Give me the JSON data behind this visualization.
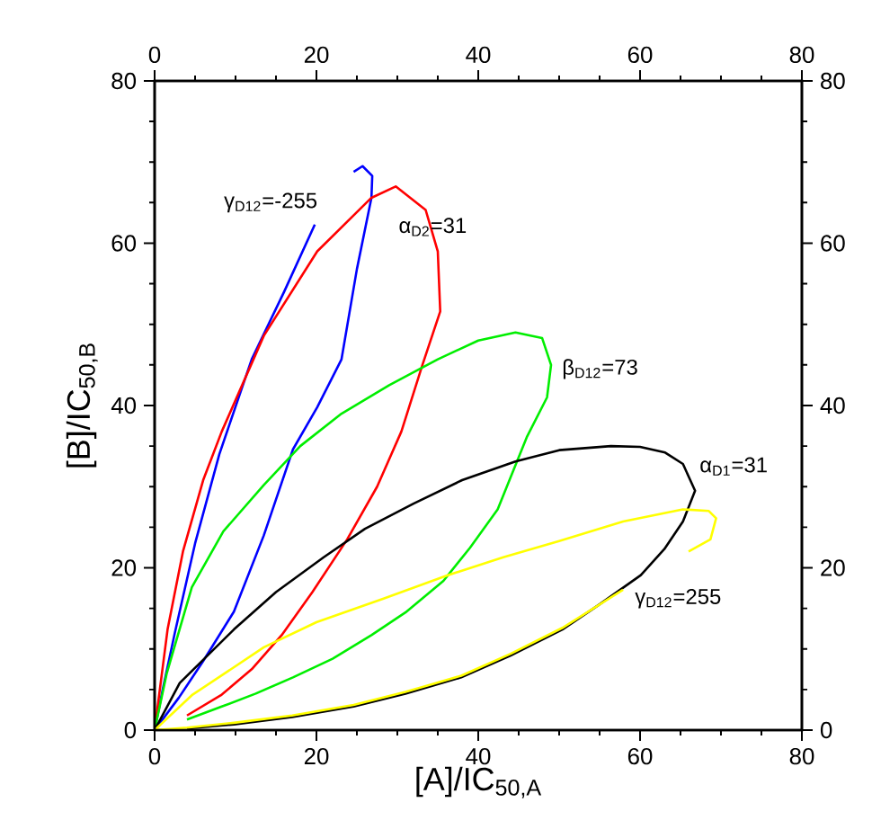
{
  "chart_data": {
    "type": "line",
    "xlabel": "[A]/IC$_{50,A}$",
    "ylabel": "[B]/IC$_{50,B}$",
    "xlim": [
      0,
      80
    ],
    "ylim": [
      0,
      80
    ],
    "x2lim": [
      0,
      80
    ],
    "y2lim": [
      0,
      80
    ],
    "xticks": [
      0,
      {
        "value": 5,
        "label": null
      },
      {
        "value": 10,
        "label": null
      },
      {
        "value": 15,
        "label": null
      },
      20,
      {
        "value": 25,
        "label": null
      },
      {
        "value": 30,
        "label": null
      },
      {
        "value": 35,
        "label": null
      },
      40,
      {
        "value": 45,
        "label": null
      },
      {
        "value": 50,
        "label": null
      },
      {
        "value": 55,
        "label": null
      },
      60,
      {
        "value": 65,
        "label": null
      },
      {
        "value": 70,
        "label": null
      },
      {
        "value": 75,
        "label": null
      },
      80
    ],
    "yticks": [
      0,
      {
        "value": 5,
        "label": null
      },
      {
        "value": 10,
        "label": null
      },
      {
        "value": 15,
        "label": null
      },
      20,
      {
        "value": 25,
        "label": null
      },
      {
        "value": 30,
        "label": null
      },
      {
        "value": 35,
        "label": null
      },
      40,
      {
        "value": 45,
        "label": null
      },
      {
        "value": 50,
        "label": null
      },
      {
        "value": 55,
        "label": null
      },
      60,
      {
        "value": 65,
        "label": null
      },
      {
        "value": 70,
        "label": null
      },
      {
        "value": 75,
        "label": null
      },
      80
    ],
    "x2ticks": [
      0,
      {
        "value": 5,
        "label": null
      },
      {
        "value": 10,
        "label": null
      },
      {
        "value": 15,
        "label": null
      },
      20,
      {
        "value": 25,
        "label": null
      },
      {
        "value": 30,
        "label": null
      },
      {
        "value": 35,
        "label": null
      },
      40,
      {
        "value": 45,
        "label": null
      },
      {
        "value": 50,
        "label": null
      },
      {
        "value": 55,
        "label": null
      },
      60,
      {
        "value": 65,
        "label": null
      },
      {
        "value": 70,
        "label": null
      },
      {
        "value": 75,
        "label": null
      },
      80
    ],
    "y2ticks": [
      0,
      {
        "value": 5,
        "label": null
      },
      {
        "value": 10,
        "label": null
      },
      {
        "value": 15,
        "label": null
      },
      20,
      {
        "value": 25,
        "label": null
      },
      {
        "value": 30,
        "label": null
      },
      {
        "value": 35,
        "label": null
      },
      40,
      {
        "value": 45,
        "label": null
      },
      {
        "value": 50,
        "label": null
      },
      {
        "value": 55,
        "label": null
      },
      60,
      {
        "value": 65,
        "label": null
      },
      {
        "value": 70,
        "label": null
      },
      {
        "value": 75,
        "label": null
      },
      80
    ],
    "series": [
      {
        "name": "γ$_{D12}$=-255",
        "color": "#0000ff",
        "x": [
          19.8,
          16,
          12,
          8,
          5,
          2.5,
          1,
          0,
          3,
          6,
          9.8,
          13.5,
          17.1,
          20.1,
          23.1,
          25,
          26.8,
          26.9,
          25.7,
          24.6
        ],
        "values": [
          62.3,
          54,
          45.7,
          34,
          23,
          12,
          5,
          0,
          4,
          8.5,
          14.6,
          24,
          34.6,
          39.8,
          45.7,
          56.8,
          65.6,
          68.3,
          69.5,
          68.8
        ]
      },
      {
        "name": "α$_{D2}$=31",
        "color": "#ff0000",
        "x": [
          0,
          1.6,
          3.5,
          6,
          8.3,
          13.5,
          20.1,
          26.8,
          29.8,
          33.5,
          35,
          35.3,
          33.1,
          30.5,
          27.5,
          23.8,
          19.5,
          15.7,
          12,
          8.2,
          4
        ],
        "values": [
          0,
          12.4,
          22,
          30.8,
          36.8,
          48.6,
          59,
          65.6,
          67,
          64.1,
          59,
          51.6,
          45,
          36.8,
          30,
          23.5,
          17,
          11.7,
          7.5,
          4.3,
          1.8
        ]
      },
      {
        "name": "β$_{D12}$=73",
        "color": "#00ee00",
        "x": [
          0,
          1.5,
          4.6,
          8.5,
          13.5,
          18,
          23.1,
          29,
          35,
          40,
          44.6,
          47.9,
          49,
          48.5,
          46,
          42.4,
          39,
          35.7,
          31,
          26.8,
          22,
          17.1,
          12.5,
          8.3,
          4
        ],
        "values": [
          0,
          7,
          17.6,
          24.5,
          30.2,
          35,
          39,
          42.5,
          45.7,
          48,
          49,
          48.3,
          45,
          41,
          36.1,
          27.2,
          22.5,
          18.4,
          14.5,
          11.7,
          8.8,
          6.5,
          4.5,
          2.9,
          1.3
        ]
      },
      {
        "name": "α$_{D1}$=31",
        "color": "#000000",
        "x": [
          0,
          3.1,
          9.8,
          15,
          20.9,
          26,
          32,
          38,
          44.6,
          50,
          56.4,
          60,
          63.1,
          65.3,
          66.8,
          65.3,
          63,
          60.1,
          55,
          50.4,
          44,
          37.9,
          31,
          24.6,
          17,
          9.8,
          4
        ],
        "values": [
          0,
          5.8,
          12.4,
          17,
          21.3,
          24.8,
          27.9,
          30.8,
          33.1,
          34.5,
          35,
          34.9,
          34.2,
          32.8,
          29.5,
          25.7,
          22.3,
          19.1,
          15.5,
          12.4,
          9.2,
          6.5,
          4.5,
          2.9,
          1.6,
          0.7,
          0.2
        ]
      },
      {
        "name": "γ$_{D12}$=255",
        "color": "#ffff00",
        "x": [
          57.9,
          50.4,
          44,
          37.9,
          31,
          24.6,
          17,
          9.8,
          4,
          0,
          4.6,
          13.5,
          20,
          28.3,
          36,
          43.1,
          50,
          57.9,
          65.3,
          68.5,
          69.4,
          68.7,
          66
        ],
        "values": [
          17.3,
          12.6,
          9.4,
          6.7,
          4.7,
          3.1,
          1.8,
          0.9,
          0.3,
          0,
          4.3,
          10.2,
          13.3,
          16.2,
          19,
          21.3,
          23.3,
          25.7,
          27.2,
          27,
          26.1,
          23.5,
          22
        ]
      }
    ]
  }
}
